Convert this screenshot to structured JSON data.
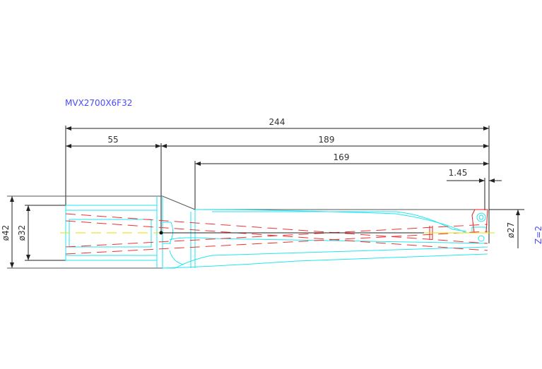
{
  "drawing": {
    "title": "MVX2700X6F32",
    "dimensions": {
      "overall_length": "244",
      "shank_length": "55",
      "body_length": "189",
      "flute_length": "169",
      "insert_offset": "1.45",
      "shank_diameter_outer": "ø42",
      "shank_diameter": "ø32",
      "drill_diameter": "ø27"
    },
    "flutes_label": "Z=2",
    "colors": {
      "title": "#4a4aff",
      "outline": "#555555",
      "tool_body": "#22e6f0",
      "hidden_lines": "#f03030",
      "centerline": "#e8e000"
    }
  }
}
